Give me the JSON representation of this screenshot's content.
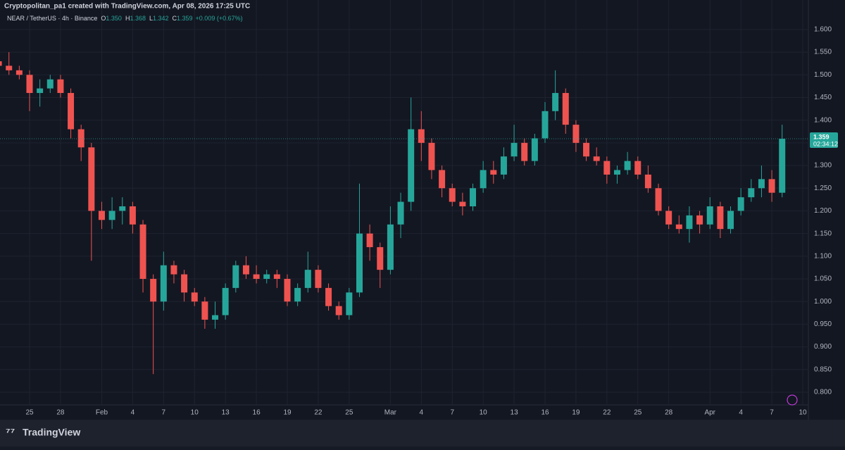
{
  "header": {
    "credit": "Cryptopolitan_pa1 created with TradingView.com, Apr 08, 2026 17:25 UTC",
    "symbol": "NEAR / TetherUS · 4h · Binance",
    "ohlc": [
      {
        "key": "O",
        "value": "1.350"
      },
      {
        "key": "H",
        "value": "1.368"
      },
      {
        "key": "L",
        "value": "1.342"
      },
      {
        "key": "C",
        "value": "1.359"
      }
    ],
    "change": "+0.009 (+0.67%)"
  },
  "footer": {
    "brand": "TradingView"
  },
  "chart_data": {
    "type": "candlestick",
    "up_color": "#26a69a",
    "down_color": "#ef5350",
    "grid": true,
    "categories": [
      null,
      null,
      null,
      "25",
      null,
      null,
      "28",
      null,
      null,
      null,
      "Feb",
      null,
      null,
      "4",
      null,
      null,
      "7",
      null,
      null,
      "10",
      null,
      null,
      "13",
      null,
      null,
      "16",
      null,
      null,
      "19",
      null,
      null,
      "22",
      null,
      null,
      "25",
      null,
      null,
      null,
      "Mar",
      null,
      null,
      "4",
      null,
      null,
      "7",
      null,
      null,
      "10",
      null,
      null,
      "13",
      null,
      null,
      "16",
      null,
      null,
      "19",
      null,
      null,
      "22",
      null,
      null,
      "25",
      null,
      null,
      "28",
      null,
      null,
      null,
      "Apr",
      null,
      null,
      "4",
      null,
      null,
      "7",
      null,
      null,
      "10"
    ],
    "open": [
      1.53,
      1.52,
      1.51,
      1.5,
      1.46,
      1.47,
      1.49,
      1.46,
      1.38,
      1.34,
      1.2,
      1.18,
      1.2,
      1.21,
      1.17,
      1.05,
      1.0,
      1.08,
      1.06,
      1.02,
      1.0,
      0.96,
      0.97,
      1.03,
      1.08,
      1.06,
      1.05,
      1.06,
      1.05,
      1.0,
      1.03,
      1.07,
      1.03,
      0.99,
      0.97,
      1.02,
      1.15,
      1.12,
      1.07,
      1.17,
      1.22,
      1.38,
      1.35,
      1.29,
      1.25,
      1.22,
      1.21,
      1.25,
      1.29,
      1.28,
      1.32,
      1.35,
      1.31,
      1.36,
      1.42,
      1.46,
      1.39,
      1.35,
      1.32,
      1.31,
      1.28,
      1.29,
      1.31,
      1.28,
      1.25,
      1.2,
      1.17,
      1.16,
      1.19,
      1.17,
      1.21,
      1.16,
      1.2,
      1.23,
      1.25,
      1.27,
      1.24,
      null,
      null
    ],
    "high": [
      1.55,
      1.55,
      1.52,
      1.51,
      1.49,
      1.5,
      1.5,
      1.47,
      1.39,
      1.35,
      1.22,
      1.23,
      1.23,
      1.22,
      1.18,
      1.06,
      1.11,
      1.09,
      1.07,
      1.03,
      1.01,
      1.0,
      1.04,
      1.09,
      1.1,
      1.08,
      1.07,
      1.07,
      1.06,
      1.04,
      1.11,
      1.08,
      1.04,
      1.0,
      1.03,
      1.26,
      1.17,
      1.13,
      1.21,
      1.24,
      1.45,
      1.42,
      1.36,
      1.3,
      1.26,
      1.24,
      1.26,
      1.31,
      1.31,
      1.34,
      1.39,
      1.36,
      1.37,
      1.44,
      1.51,
      1.47,
      1.4,
      1.36,
      1.34,
      1.32,
      1.3,
      1.33,
      1.32,
      1.3,
      1.26,
      1.21,
      1.19,
      1.21,
      1.2,
      1.23,
      1.22,
      1.21,
      1.25,
      1.27,
      1.3,
      1.29,
      1.39,
      null,
      null
    ],
    "low": [
      1.51,
      1.5,
      1.49,
      1.42,
      1.43,
      1.46,
      1.45,
      1.36,
      1.31,
      1.09,
      1.16,
      1.16,
      1.17,
      1.15,
      1.02,
      0.84,
      0.98,
      1.04,
      1.0,
      0.99,
      0.94,
      0.94,
      0.96,
      1.02,
      1.05,
      1.04,
      1.04,
      1.03,
      0.99,
      0.99,
      1.02,
      1.02,
      0.98,
      0.96,
      0.96,
      1.01,
      1.09,
      1.03,
      1.06,
      1.14,
      1.2,
      1.31,
      1.27,
      1.23,
      1.21,
      1.19,
      1.2,
      1.24,
      1.26,
      1.27,
      1.31,
      1.3,
      1.3,
      1.35,
      1.4,
      1.37,
      1.33,
      1.31,
      1.3,
      1.26,
      1.26,
      1.28,
      1.27,
      1.24,
      1.19,
      1.16,
      1.15,
      1.13,
      1.15,
      1.16,
      1.14,
      1.15,
      1.19,
      1.22,
      1.23,
      1.22,
      1.23,
      null,
      null
    ],
    "close": [
      1.52,
      1.51,
      1.5,
      1.46,
      1.47,
      1.49,
      1.46,
      1.38,
      1.34,
      1.2,
      1.18,
      1.2,
      1.21,
      1.17,
      1.05,
      1.0,
      1.08,
      1.06,
      1.02,
      1.0,
      0.96,
      0.97,
      1.03,
      1.08,
      1.06,
      1.05,
      1.06,
      1.05,
      1.0,
      1.03,
      1.07,
      1.03,
      0.99,
      0.97,
      1.02,
      1.15,
      1.12,
      1.07,
      1.17,
      1.22,
      1.38,
      1.35,
      1.29,
      1.25,
      1.22,
      1.21,
      1.25,
      1.29,
      1.28,
      1.32,
      1.35,
      1.31,
      1.36,
      1.42,
      1.46,
      1.39,
      1.35,
      1.32,
      1.31,
      1.28,
      1.29,
      1.31,
      1.28,
      1.25,
      1.2,
      1.17,
      1.16,
      1.19,
      1.17,
      1.21,
      1.16,
      1.2,
      1.23,
      1.25,
      1.27,
      1.24,
      1.359,
      null,
      null
    ],
    "ylim": [
      0.772,
      1.634
    ],
    "yticks": [
      {
        "value": 0.8,
        "label": "0.800"
      },
      {
        "value": 0.85,
        "label": "0.850"
      },
      {
        "value": 0.9,
        "label": "0.900"
      },
      {
        "value": 0.95,
        "label": "0.950"
      },
      {
        "value": 1.0,
        "label": "1.000"
      },
      {
        "value": 1.05,
        "label": "1.050"
      },
      {
        "value": 1.1,
        "label": "1.100"
      },
      {
        "value": 1.15,
        "label": "1.150"
      },
      {
        "value": 1.2,
        "label": "1.200"
      },
      {
        "value": 1.25,
        "label": "1.250"
      },
      {
        "value": 1.3,
        "label": "1.300"
      },
      {
        "value": 1.35,
        "label": "1.350"
      },
      {
        "value": 1.4,
        "label": "1.400"
      },
      {
        "value": 1.45,
        "label": "1.450"
      },
      {
        "value": 1.5,
        "label": "1.500"
      },
      {
        "value": 1.55,
        "label": "1.550"
      },
      {
        "value": 1.6,
        "label": "1.600"
      }
    ],
    "last_price": {
      "value": 1.359,
      "label": "1.359",
      "countdown": "02:34:12"
    }
  }
}
